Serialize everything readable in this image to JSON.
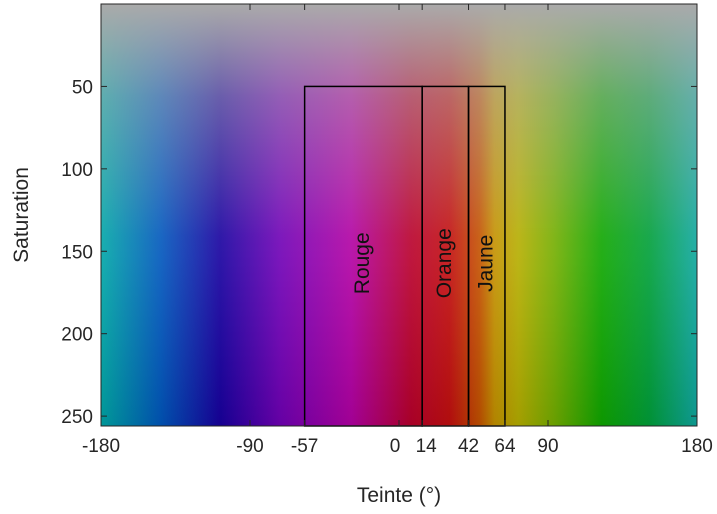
{
  "chart_data": {
    "type": "heatmap",
    "xlabel": "Teinte (°)",
    "ylabel": "Saturation",
    "xlim": [
      -180,
      180
    ],
    "ylim": [
      256,
      0
    ],
    "y_axis_inverted": true,
    "x_ticks": [
      -180,
      -90,
      -57,
      0,
      14,
      42,
      64,
      90,
      180
    ],
    "x_tick_labels": [
      "-180",
      "-90",
      "-57",
      "0",
      "14",
      "42",
      "64",
      "90",
      "180"
    ],
    "y_ticks": [
      50,
      100,
      150,
      200,
      250
    ],
    "y_tick_labels": [
      "50",
      "100",
      "150",
      "200",
      "250"
    ],
    "grid": false,
    "background": "hue-saturation color map (hue along x, saturation along y, gray at low saturation)",
    "regions": [
      {
        "label": "Rouge",
        "hue_min": -57,
        "hue_max": 14,
        "sat_min": 50,
        "sat_max": 256
      },
      {
        "label": "Orange",
        "hue_min": 14,
        "hue_max": 42,
        "sat_min": 50,
        "sat_max": 256
      },
      {
        "label": "Jaune",
        "hue_min": 42,
        "hue_max": 64,
        "sat_min": 50,
        "sat_max": 256
      }
    ],
    "region_outline_color": "#000000"
  }
}
